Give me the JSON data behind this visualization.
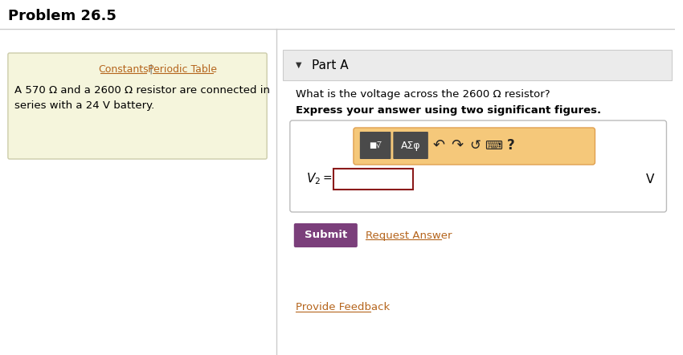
{
  "title": "Problem 26.5",
  "title_fontsize": 13,
  "title_color": "#000000",
  "bg_color": "#ffffff",
  "left_panel_bg": "#f5f5dc",
  "left_panel_border": "#ccccaa",
  "constants_text": "Constants",
  "periodic_text": "Periodic Table",
  "link_color": "#b5651d",
  "problem_text_line1": "A 570 Ω and a 2600 Ω resistor are connected in",
  "problem_text_line2": "series with a 24 V battery.",
  "problem_text_color": "#000000",
  "problem_text_fontsize": 9.5,
  "part_a_label": "Part A",
  "triangle_char": "▼",
  "part_a_fontsize": 11,
  "question_text": "What is the voltage across the 2600 Ω resistor?",
  "question_fontsize": 9.5,
  "bold_text": "Express your answer using two significant figures.",
  "bold_fontsize": 9.5,
  "toolbar_bg": "#f5c87a",
  "toolbar_border": "#e0a050",
  "input_box_border": "#8b1a1a",
  "unit_label": "V",
  "submit_bg": "#7b3f7b",
  "submit_text": "Submit",
  "submit_text_color": "#ffffff",
  "submit_fontsize": 9.5,
  "request_text": "Request Answer",
  "request_color": "#b5651d",
  "feedback_text": "Provide Feedback",
  "feedback_color": "#b5651d"
}
